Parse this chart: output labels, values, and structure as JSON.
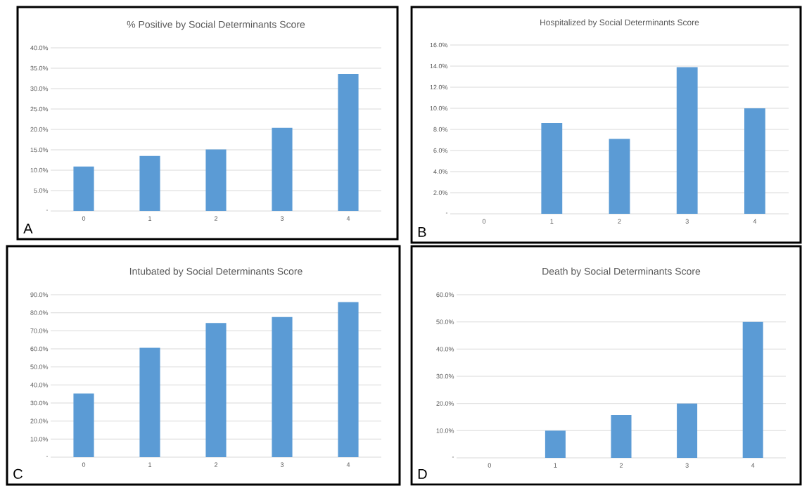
{
  "chart_data": [
    {
      "type": "bar",
      "title": "% Positive by Social Determinants Score",
      "categories": [
        "0",
        "1",
        "2",
        "3",
        "4"
      ],
      "values": [
        10.9,
        13.5,
        15.1,
        20.4,
        33.6
      ],
      "color": "#5b9bd5",
      "ylim": [
        0,
        40
      ],
      "yticks": [
        {
          "value": 0,
          "label": "-"
        },
        {
          "value": 5,
          "label": "5.0%"
        },
        {
          "value": 10,
          "label": "10.0%"
        },
        {
          "value": 15,
          "label": "15.0%"
        },
        {
          "value": 20,
          "label": "20.0%"
        },
        {
          "value": 25,
          "label": "25.0%"
        },
        {
          "value": 30,
          "label": "30.0%"
        },
        {
          "value": 35,
          "label": "35.0%"
        },
        {
          "value": 40,
          "label": "40.0%"
        }
      ],
      "grid": "y",
      "annotations": [
        "A"
      ]
    },
    {
      "type": "bar",
      "title": "Hospitalized by Social Determinants Score",
      "categories": [
        "0",
        "1",
        "2",
        "3",
        "4"
      ],
      "values": [
        0,
        8.6,
        7.1,
        13.9,
        10.0
      ],
      "color": "#5b9bd5",
      "ylim": [
        0,
        16
      ],
      "yticks": [
        {
          "value": 0,
          "label": "-"
        },
        {
          "value": 2,
          "label": "2.0%"
        },
        {
          "value": 4,
          "label": "4.0%"
        },
        {
          "value": 6,
          "label": "6.0%"
        },
        {
          "value": 8,
          "label": "8.0%"
        },
        {
          "value": 10,
          "label": "10.0%"
        },
        {
          "value": 12,
          "label": "12.0%"
        },
        {
          "value": 14,
          "label": "14.0%"
        },
        {
          "value": 16,
          "label": "16.0%"
        }
      ],
      "grid": "y",
      "annotations": [
        "B"
      ]
    },
    {
      "type": "bar",
      "title": "Intubated by Social Determinants Score",
      "categories": [
        "0",
        "1",
        "2",
        "3",
        "4"
      ],
      "values": [
        35.3,
        60.6,
        74.3,
        77.6,
        85.9
      ],
      "color": "#5b9bd5",
      "ylim": [
        0,
        90
      ],
      "yticks": [
        {
          "value": 0,
          "label": "-"
        },
        {
          "value": 10,
          "label": "10.0%"
        },
        {
          "value": 20,
          "label": "20.0%"
        },
        {
          "value": 30,
          "label": "30.0%"
        },
        {
          "value": 40,
          "label": "40.0%"
        },
        {
          "value": 50,
          "label": "50.0%"
        },
        {
          "value": 60,
          "label": "60.0%"
        },
        {
          "value": 70,
          "label": "70.0%"
        },
        {
          "value": 80,
          "label": "80.0%"
        },
        {
          "value": 90,
          "label": "90.0%"
        }
      ],
      "grid": "y",
      "annotations": [
        "C"
      ]
    },
    {
      "type": "bar",
      "title": "Death by Social Determinants Score",
      "categories": [
        "0",
        "1",
        "2",
        "3",
        "4"
      ],
      "values": [
        0,
        10.0,
        15.8,
        20.0,
        50.0
      ],
      "color": "#5b9bd5",
      "ylim": [
        0,
        60
      ],
      "yticks": [
        {
          "value": 0,
          "label": "-"
        },
        {
          "value": 10,
          "label": "10.0%"
        },
        {
          "value": 20,
          "label": "20.0%"
        },
        {
          "value": 30,
          "label": "30.0%"
        },
        {
          "value": 40,
          "label": "40.0%"
        },
        {
          "value": 50,
          "label": "50.0%"
        },
        {
          "value": 60,
          "label": "60.0%"
        }
      ],
      "grid": "y",
      "annotations": [
        "D"
      ]
    }
  ]
}
